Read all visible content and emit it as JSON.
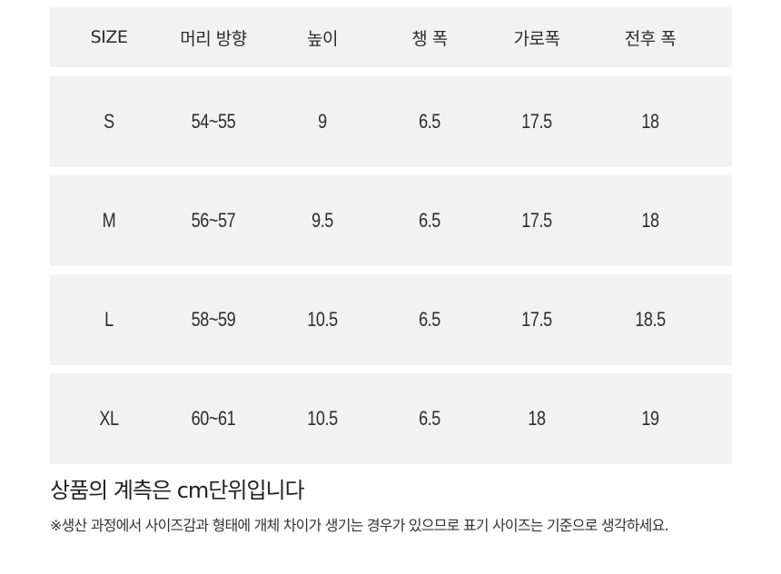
{
  "size_table": {
    "columns": [
      "SIZE",
      "머리 방향",
      "높이",
      "챙 폭",
      "가로폭",
      "전후 폭"
    ],
    "rows": [
      {
        "size": "S",
        "head": "54~55",
        "height": "9",
        "brim": "6.5",
        "width": "17.5",
        "depth": "18"
      },
      {
        "size": "M",
        "head": "56~57",
        "height": "9.5",
        "brim": "6.5",
        "width": "17.5",
        "depth": "18"
      },
      {
        "size": "L",
        "head": "58~59",
        "height": "10.5",
        "brim": "6.5",
        "width": "17.5",
        "depth": "18.5"
      },
      {
        "size": "XL",
        "head": "60~61",
        "height": "10.5",
        "brim": "6.5",
        "width": "18",
        "depth": "19"
      }
    ]
  },
  "notes": {
    "title": "상품의 계측은 cm단위입니다",
    "text": "※생산 과정에서 사이즈감과 형태에 개체 차이가 생기는 경우가 있으므로 표기 사이즈는 기준으로 생각하세요."
  },
  "colors": {
    "row_background": "#f2f2f2",
    "text": "#2b2b2b"
  }
}
